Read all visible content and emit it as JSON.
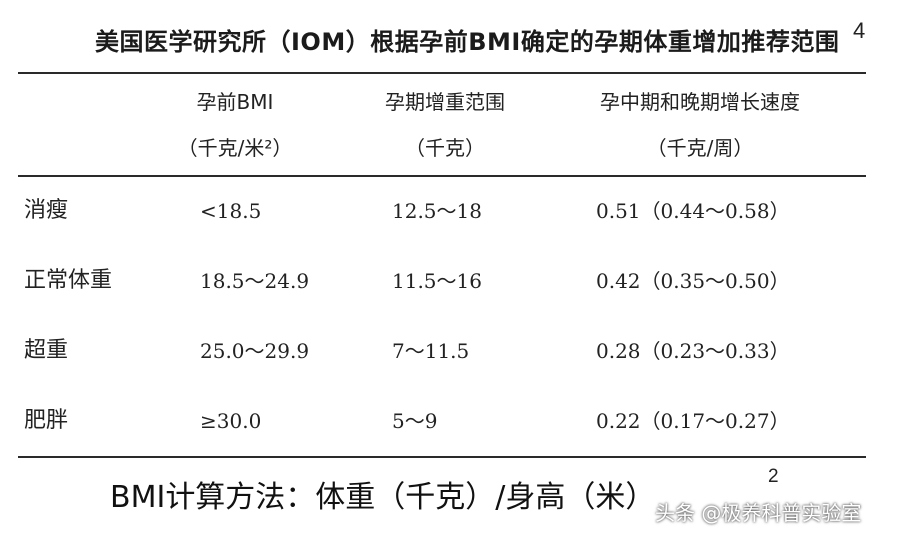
{
  "title": "美国医学研究所（IOM）根据孕前BMI确定的孕期体重增加推荐范围",
  "title_superscript": "4",
  "headers": [
    {
      "line1": "孕前BMI",
      "line2": "（千克/米²）"
    },
    {
      "line1": "孕期增重范围",
      "line2": "（千克）"
    },
    {
      "line1": "孕中期和晚期增长速度",
      "line2": "（千克/周）"
    }
  ],
  "rows": [
    {
      "category": "消瘦",
      "bmi": "<18.5",
      "gain": "12.5～18",
      "rate": "0.51（0.44～0.58）"
    },
    {
      "category": "正常体重",
      "bmi": "18.5～24.9",
      "gain": "11.5～16",
      "rate": "0.42（0.35～0.50）"
    },
    {
      "category": "超重",
      "bmi": "25.0～29.9",
      "gain": "7～11.5",
      "rate": "0.28（0.23～0.33）"
    },
    {
      "category": "肥胖",
      "bmi": "≥30.0",
      "gain": "5～9",
      "rate": "0.22（0.17～0.27）"
    }
  ],
  "footer": {
    "formula": "BMI计算方法：体重（千克）/身高（米）",
    "superscript": "2"
  },
  "watermark": "头条 @极养科普实验室"
}
